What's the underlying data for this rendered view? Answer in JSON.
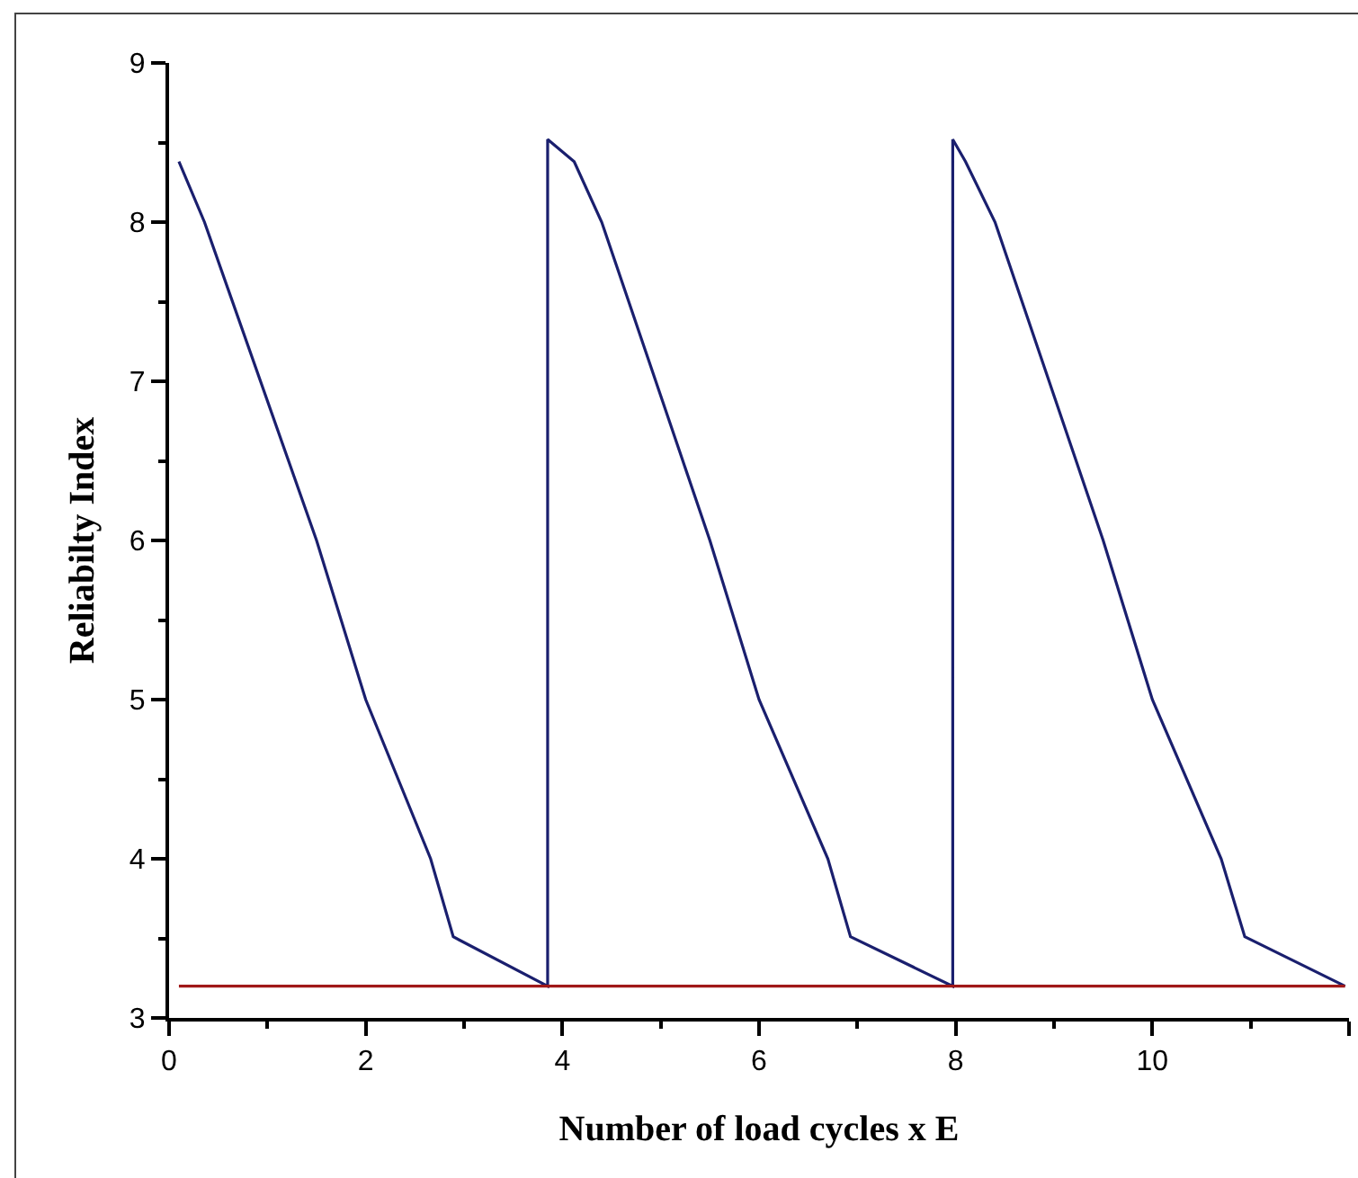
{
  "chart_data": {
    "type": "line",
    "xlabel": "Number of load cycles x E",
    "ylabel": "Reliabilty Index",
    "series": [
      {
        "color": "#1a1f6e",
        "x": [
          0.1,
          0.36,
          1.5,
          2.0,
          2.66,
          2.89,
          3.85,
          3.85,
          4.12,
          4.4,
          5.5,
          6.0,
          6.7,
          6.93,
          7.97,
          7.97,
          8.1,
          8.4,
          9.5,
          10.0,
          10.7,
          10.94,
          11.96
        ],
        "values": [
          8.38,
          8.0,
          6.0,
          5.0,
          4.0,
          3.51,
          3.2,
          8.52,
          8.38,
          8.0,
          6.0,
          5.0,
          4.0,
          3.51,
          3.2,
          8.52,
          8.38,
          8.0,
          6.0,
          5.0,
          4.0,
          3.51,
          3.2
        ]
      },
      {
        "color": "#a01818",
        "x": [
          0.1,
          11.96
        ],
        "values": [
          3.2,
          3.2
        ]
      }
    ],
    "xlim": [
      0,
      12
    ],
    "xticks": [
      0,
      2,
      4,
      6,
      8,
      10,
      {
        "value": 12,
        "label": null
      }
    ],
    "ylim": [
      3,
      9
    ],
    "yticks": [
      3,
      4,
      5,
      6,
      7,
      8,
      9
    ],
    "marker": "none",
    "line_style": "solid"
  }
}
